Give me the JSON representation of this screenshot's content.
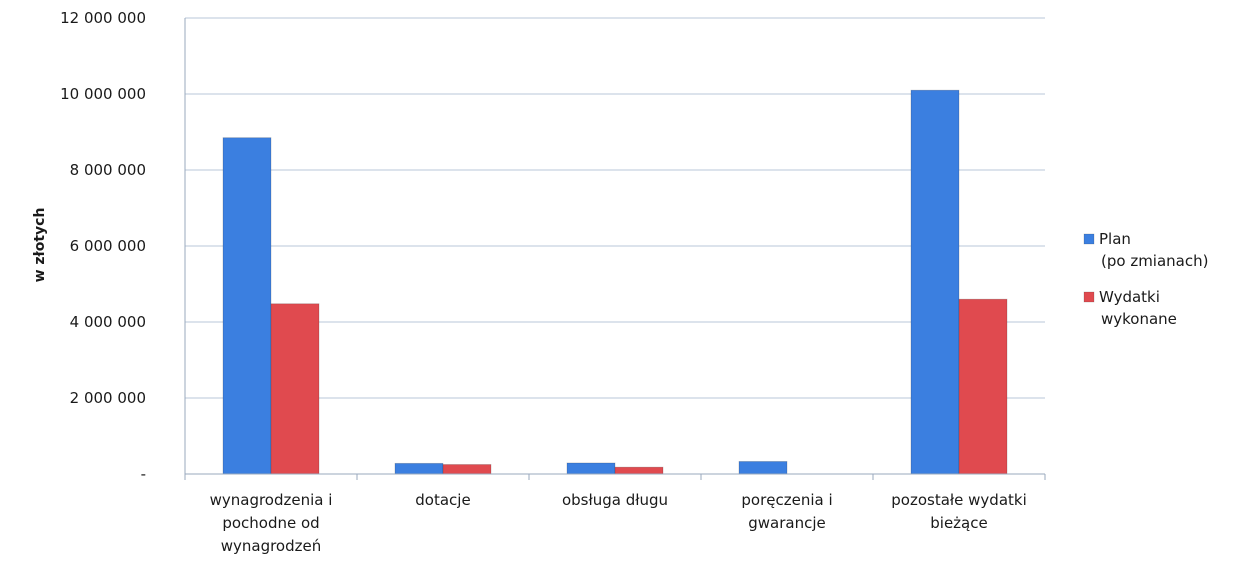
{
  "chart_data": {
    "type": "bar",
    "title": "",
    "xlabel": "",
    "ylabel": "w złotych",
    "ylim": [
      0,
      12000000
    ],
    "yticks": [
      {
        "value": 0,
        "label": "-"
      },
      {
        "value": 2000000,
        "label": "2 000 000"
      },
      {
        "value": 4000000,
        "label": "4 000 000"
      },
      {
        "value": 6000000,
        "label": "6 000 000"
      },
      {
        "value": 8000000,
        "label": "8 000 000"
      },
      {
        "value": 10000000,
        "label": "10 000 000"
      },
      {
        "value": 12000000,
        "label": "12 000 000"
      }
    ],
    "grid": true,
    "legend_position": "right",
    "categories": [
      [
        "wynagrodzenia i",
        "pochodne od",
        "wynagrodzeń"
      ],
      [
        "dotacje"
      ],
      [
        "obsługa długu"
      ],
      [
        "poręczenia i",
        "gwarancje"
      ],
      [
        "pozostałe wydatki",
        "bieżące"
      ]
    ],
    "series": [
      {
        "name": [
          "Plan",
          "(po zmianach)"
        ],
        "color": "#3b7fe0",
        "values": [
          8850000,
          280000,
          290000,
          330000,
          10100000
        ]
      },
      {
        "name": [
          "Wydatki",
          "wykonane"
        ],
        "color": "#e04a4f",
        "values": [
          4480000,
          250000,
          180000,
          0,
          4600000
        ]
      }
    ]
  }
}
